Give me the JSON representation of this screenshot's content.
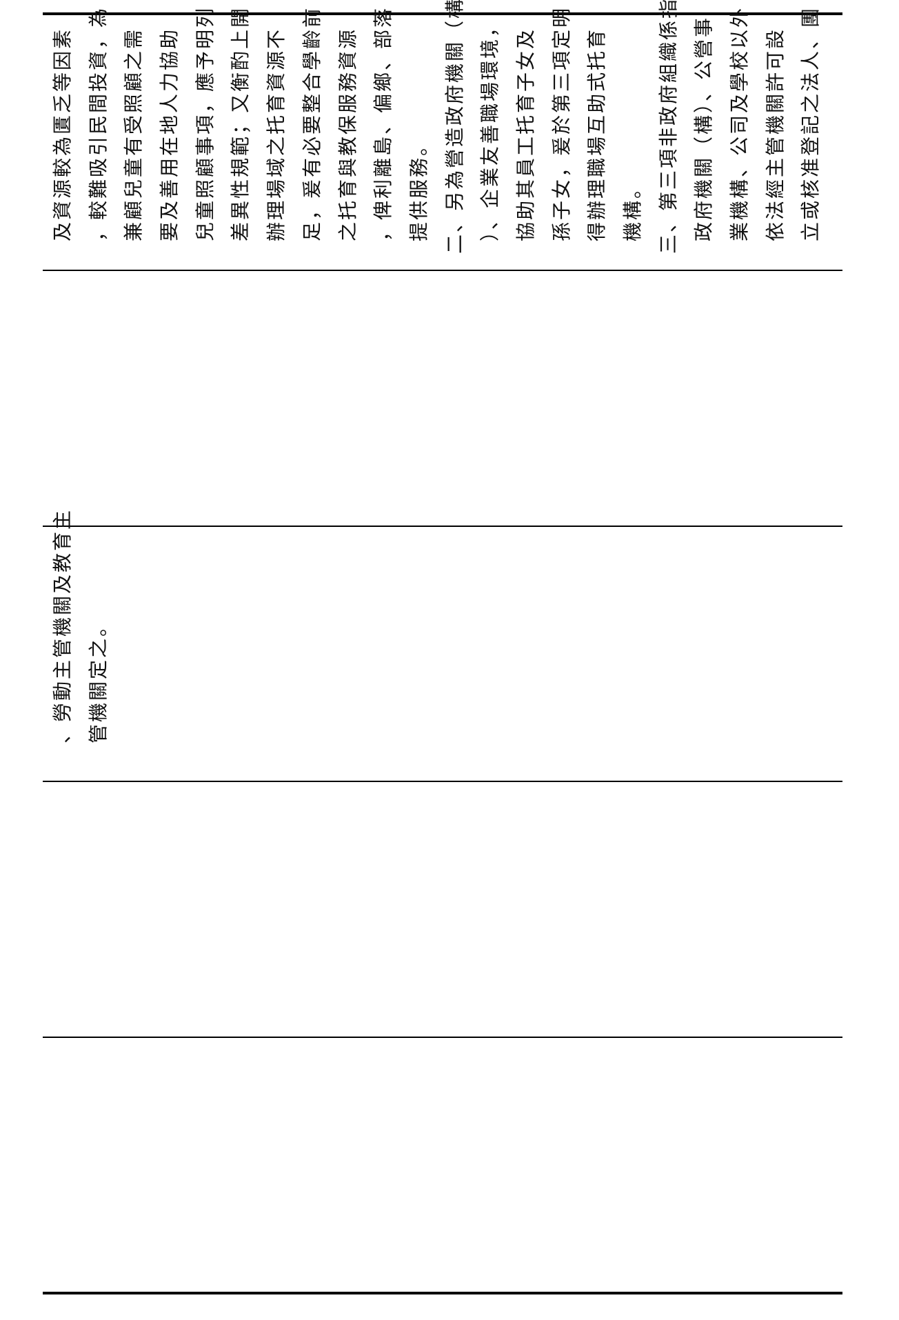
{
  "table": {
    "cells": [
      {
        "lines": []
      },
      {
        "lines": []
      },
      {
        "lines": [
          "、勞動主管機關及教育主",
          "管機關定之。"
        ]
      },
      {
        "lines": []
      },
      {
        "lines": [
          "及資源較為匱乏等因素",
          "，較難吸引民間投資，為",
          "兼顧兒童有受照顧之需",
          "要及善用在地人力協助",
          "兒童照顧事項，應予明列",
          "差異性規範；又衡酌上開",
          "辦理場域之托育資源不",
          "足，爰有必要整合學齡前",
          "之托育與教保服務資源",
          "，俾利離島、偏鄉、部落",
          "提供服務。",
          "二、另為營造政府機關（構",
          "）、企業友善職場環境，",
          "協助其員工托育子女及",
          "孫子女，爰於第三項定明",
          "得辦理職場互助式托育",
          "機構。",
          "三、第三項非政府組織係指",
          "政府機關（構）、公營事",
          "業機構、公司及學校以外",
          "依法經主管機關許可設",
          "立或核准登記之法人、團"
        ]
      }
    ]
  }
}
